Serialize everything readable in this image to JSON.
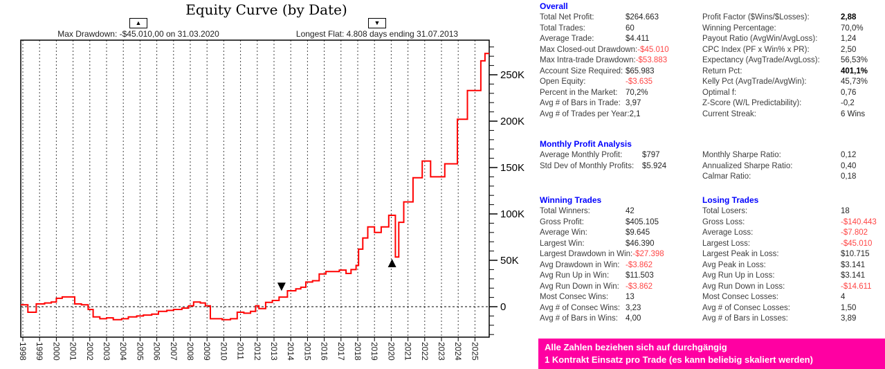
{
  "chart": {
    "title": "Equity Curve (by Date)",
    "annotations": [
      {
        "glyph": "▲",
        "label": "Max Drawdown: -$45.010,00 on 31.03.2020"
      },
      {
        "glyph": "▼",
        "label": "Longest Flat: 4.808 days ending 31.07.2013"
      }
    ]
  },
  "chart_data": {
    "type": "line",
    "style": "step-after",
    "title": "Equity Curve (by Date)",
    "x_years": [
      1997.85,
      1998.3,
      1998.8,
      1999.3,
      1999.7,
      2000.0,
      2000.35,
      2001.1,
      2001.5,
      2001.9,
      2002.2,
      2002.6,
      2003.0,
      2003.4,
      2003.9,
      2004.3,
      2004.8,
      2005.2,
      2005.7,
      2006.1,
      2006.6,
      2007.0,
      2007.5,
      2007.9,
      2008.2,
      2008.6,
      2008.9,
      2009.2,
      2009.9,
      2010.4,
      2010.8,
      2011.2,
      2011.6,
      2011.9,
      2012.1,
      2012.5,
      2012.9,
      2013.3,
      2013.8,
      2014.3,
      2014.6,
      2014.9,
      2015.3,
      2015.7,
      2016.1,
      2016.9,
      2017.3,
      2017.6,
      2017.9,
      2018.05,
      2018.3,
      2018.6,
      2019.0,
      2019.4,
      2019.85,
      2020.25,
      2020.45,
      2020.75,
      2021.3,
      2021.85,
      2022.35,
      2023.2,
      2023.95,
      2024.55,
      2025.35,
      2025.6
    ],
    "equity_usd_k": [
      2,
      -6,
      3,
      4,
      5,
      9,
      10.5,
      3,
      2,
      -3,
      -11,
      -13,
      -12,
      -14,
      -13,
      -11,
      -10,
      -9,
      -8,
      -5,
      -4,
      -3,
      -1.5,
      1,
      5,
      4,
      1,
      -13,
      -14,
      -13,
      -6,
      -7,
      -5,
      1,
      -2,
      4.7,
      6.7,
      10.4,
      17.2,
      19.2,
      21,
      26.6,
      28,
      35.3,
      37.8,
      39.5,
      35.8,
      40,
      44.5,
      62,
      74,
      86,
      80,
      86,
      98.5,
      53.5,
      91,
      113,
      139,
      157,
      140,
      154,
      202,
      233,
      265,
      273
    ],
    "x_tick_labels": [
      "1998",
      "1999",
      "2000",
      "2001",
      "2002",
      "2003",
      "2004",
      "2005",
      "2006",
      "2007",
      "2008",
      "2009",
      "2010",
      "2011",
      "2012",
      "2013",
      "2014",
      "2015",
      "2016",
      "2017",
      "2018",
      "2019",
      "2020",
      "2021",
      "2022",
      "2023",
      "2024",
      "2025"
    ],
    "y_tick_labels": [
      "0",
      "50K",
      "100K",
      "150K",
      "200K",
      "250K"
    ],
    "y_major_step_k": 50,
    "y_minor_step_k": 10,
    "ylim_usd_k": [
      -33,
      287
    ],
    "xlim_years": [
      1997.85,
      2026
    ],
    "grid": "vertical-yearly-dashed, zero-line-dashed",
    "legend": "none",
    "line_color": "#ff0000",
    "markers": [
      {
        "shape": "triangle-up",
        "year": 2020.05,
        "usd_k": 47,
        "meaning": "max drawdown low 31.03.2020"
      },
      {
        "shape": "triangle-down",
        "year": 2013.45,
        "usd_k": 21.5,
        "meaning": "longest flat ending 31.07.2013"
      }
    ]
  },
  "colors": {
    "curve_red": "#ff0000",
    "negative_red": "#ff4545",
    "header_blue": "#0000fe",
    "banner_magenta": "#ff00a2"
  },
  "stats": {
    "overall": {
      "header": "Overall",
      "left": [
        {
          "label": "Total Net Profit:",
          "value": "$264.663"
        },
        {
          "label": "Total Trades:",
          "value": "60"
        },
        {
          "label": "Average Trade:",
          "value": "$4.411"
        },
        {
          "label": "Max Closed-out Drawdown:",
          "value": "-$45.010",
          "red": true
        },
        {
          "label": "Max Intra-trade Drawdown:",
          "value": "-$53.883",
          "red": true
        },
        {
          "label": "Account Size Required:",
          "value": "$65.983"
        },
        {
          "label": "Open Equity:",
          "value": "-$3.635",
          "red": true
        },
        {
          "label": "Percent in the Market:",
          "value": "70,2%"
        },
        {
          "label": "Avg # of Bars in Trade:",
          "value": "3,97"
        },
        {
          "label": "Avg # of Trades per Year:",
          "value": "2,1"
        }
      ],
      "right": [
        {
          "label": "Profit Factor ($Wins/$Losses):",
          "value": "2,88",
          "bold": true
        },
        {
          "label": "Winning Percentage:",
          "value": "70,0%"
        },
        {
          "label": "Payout Ratio (AvgWin/AvgLoss):",
          "value": "1,24"
        },
        {
          "label": "CPC Index (PF x Win% x PR):",
          "value": "2,50"
        },
        {
          "label": "Expectancy (AvgTrade/AvgLoss):",
          "value": "56,53%"
        },
        {
          "label": "Return Pct:",
          "value": "401,1%",
          "bold": true
        },
        {
          "label": "Kelly Pct (AvgTrade/AvgWin):",
          "value": "45,73%"
        },
        {
          "label": "Optimal f:",
          "value": "0,76"
        },
        {
          "label": "Z-Score (W/L Predictability):",
          "value": "-0,2"
        },
        {
          "label": "Current Streak:",
          "value": "6 Wins"
        }
      ]
    },
    "monthly": {
      "header": "Monthly Profit Analysis",
      "left": [
        {
          "label": "Average Monthly Profit:",
          "value": "$797"
        },
        {
          "label": "Std Dev of Monthly Profits:",
          "value": "$5.924"
        }
      ],
      "right": [
        {
          "label": "Monthly Sharpe Ratio:",
          "value": "0,12"
        },
        {
          "label": "Annualized Sharpe Ratio:",
          "value": "0,40"
        },
        {
          "label": "Calmar Ratio:",
          "value": "0,18"
        }
      ]
    },
    "winning": {
      "header": "Winning Trades",
      "rows": [
        {
          "label": "Total Winners:",
          "value": "42"
        },
        {
          "label": "Gross Profit:",
          "value": "$405.105"
        },
        {
          "label": "Average Win:",
          "value": "$9.645"
        },
        {
          "label": "Largest Win:",
          "value": "$46.390"
        },
        {
          "label": "Largest Drawdown in Win:",
          "value": "-$27.398",
          "red": true
        },
        {
          "label": "Avg Drawdown in Win:",
          "value": "-$3.862",
          "red": true
        },
        {
          "label": "Avg Run Up in Win:",
          "value": "$11.503"
        },
        {
          "label": "Avg Run Down in Win:",
          "value": "-$3.862",
          "red": true
        },
        {
          "label": "Most Consec Wins:",
          "value": "13"
        },
        {
          "label": "Avg # of Consec Wins:",
          "value": "3,23"
        },
        {
          "label": "Avg # of Bars in Wins:",
          "value": "4,00"
        }
      ]
    },
    "losing": {
      "header": "Losing Trades",
      "rows": [
        {
          "label": "Total Losers:",
          "value": "18"
        },
        {
          "label": "Gross Loss:",
          "value": "-$140.443",
          "red": true
        },
        {
          "label": "Average Loss:",
          "value": "-$7.802",
          "red": true
        },
        {
          "label": "Largest Loss:",
          "value": "-$45.010",
          "red": true
        },
        {
          "label": "Largest Peak in Loss:",
          "value": "$10.715"
        },
        {
          "label": "Avg Peak in Loss:",
          "value": "$3.141"
        },
        {
          "label": "Avg Run Up in Loss:",
          "value": "$3.141"
        },
        {
          "label": "Avg Run Down in Loss:",
          "value": "-$14.611",
          "red": true
        },
        {
          "label": "Most Consec Losses:",
          "value": "4"
        },
        {
          "label": "Avg # of Consec Losses:",
          "value": "1,50"
        },
        {
          "label": "Avg # of Bars in Losses:",
          "value": "3,89"
        }
      ]
    }
  },
  "banner": {
    "line1": "Alle Zahlen beziehen sich auf durchgängig",
    "line2": "1 Kontrakt Einsatz  pro Trade (es kann beliebig skaliert werden)"
  }
}
